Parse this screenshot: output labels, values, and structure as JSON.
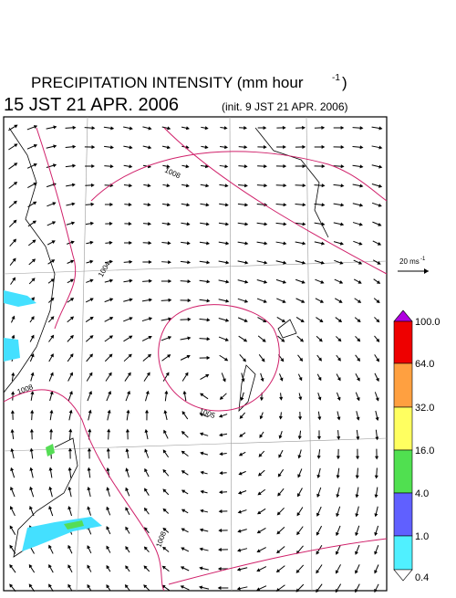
{
  "header": {
    "title": "PRECIPITATION INTENSITY (mm hour",
    "title_superscript": "-1",
    "title_close": ")",
    "time": "15 JST 21 APR. 2006",
    "init": "(init. 9 JST 21 APR. 2006)"
  },
  "wind_scale": {
    "label": "20 ms",
    "superscript": "-1"
  },
  "legend": {
    "labels": [
      "100.0",
      "64.0",
      "32.0",
      "16.0",
      "4.0",
      "1.0",
      "0.4"
    ]
  },
  "contours": {
    "labels": [
      "1008",
      "1004",
      "1008",
      "1005",
      "1008"
    ]
  }
}
